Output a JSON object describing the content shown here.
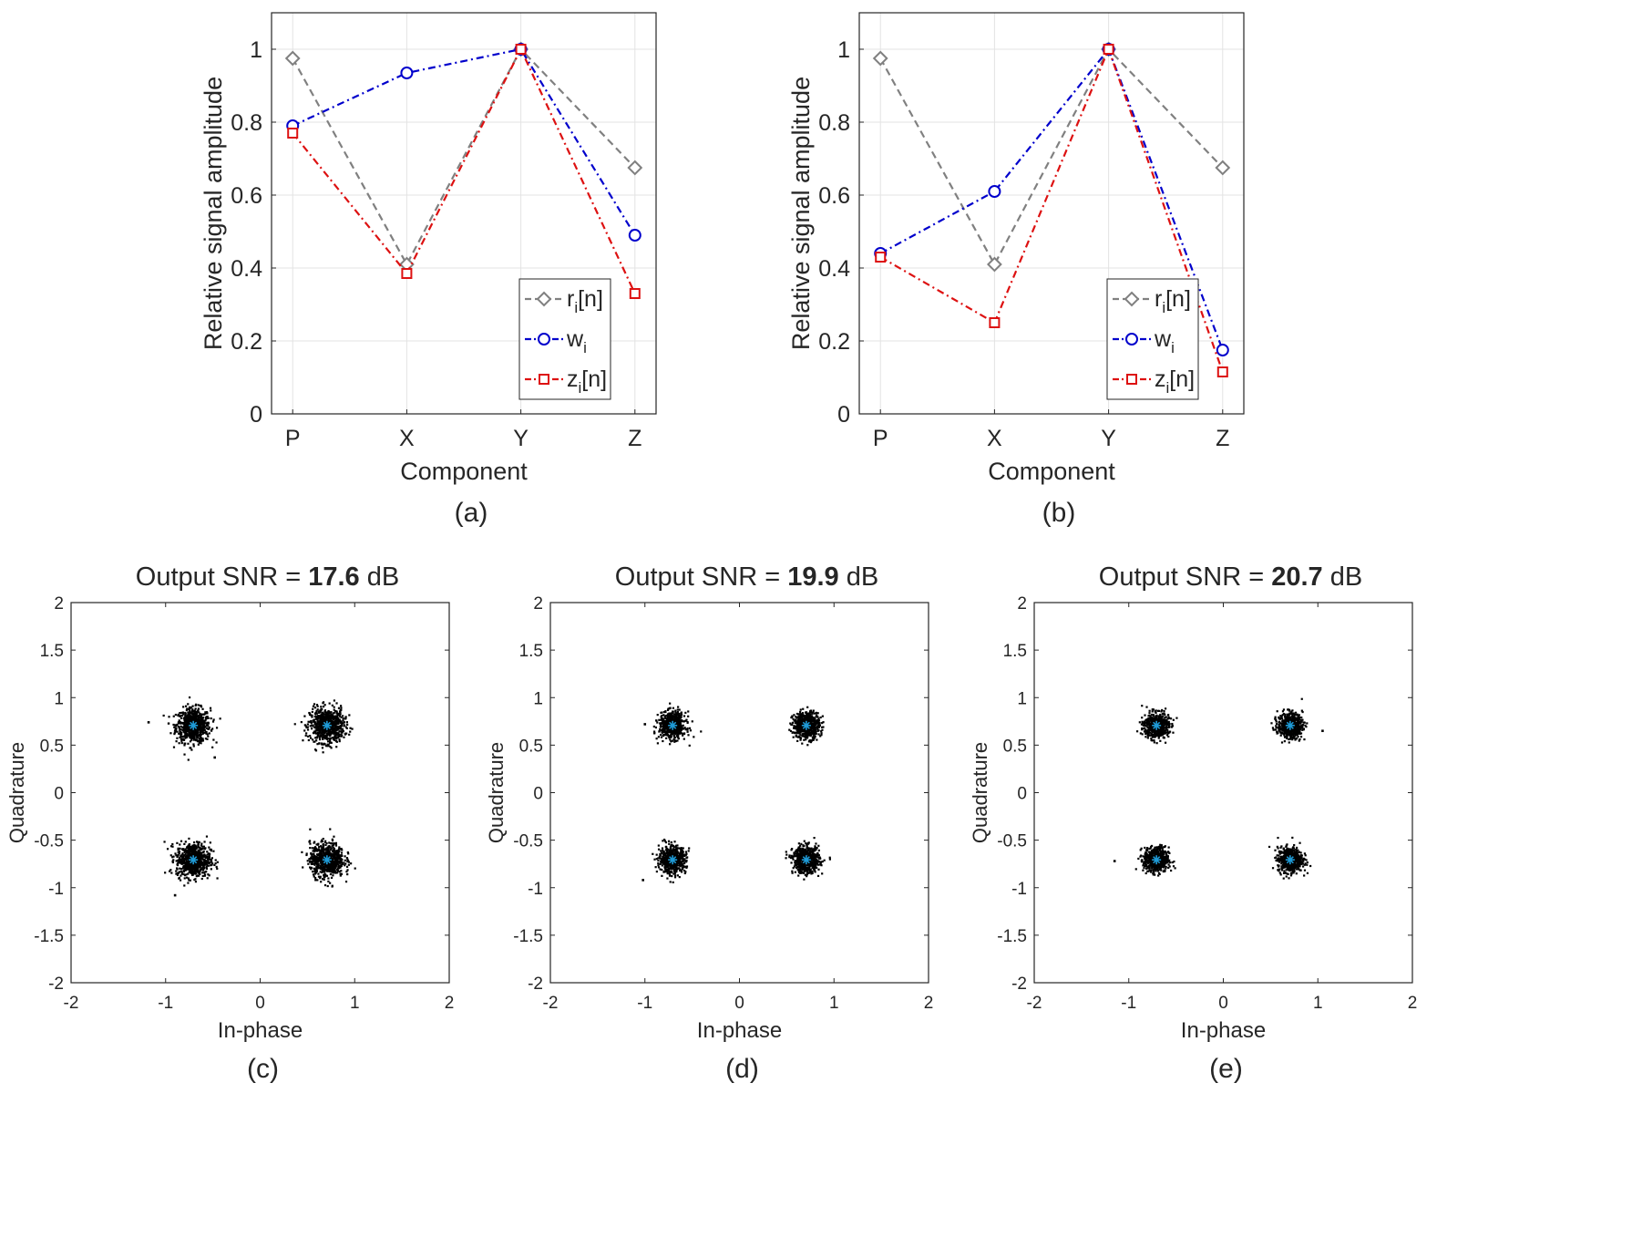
{
  "chart_data": [
    {
      "id": "a",
      "type": "line",
      "caption": "(a)",
      "xlabel": "Component",
      "ylabel": "Relative signal amplitude",
      "categories": [
        "P",
        "X",
        "Y",
        "Z"
      ],
      "ylim": [
        0,
        1.1
      ],
      "yticks": [
        0,
        0.2,
        0.4,
        0.6,
        0.8,
        1
      ],
      "ytick_labels": [
        "0",
        "0.2",
        "0.4",
        "0.6",
        "0.8",
        "1"
      ],
      "grid": true,
      "legend_position": "bottom-right",
      "series": [
        {
          "name": "r",
          "sub": "i",
          "suffix": "[n]",
          "marker": "diamond",
          "color": "#808080",
          "dash": "dashed",
          "values": [
            0.975,
            0.41,
            1.0,
            0.675
          ]
        },
        {
          "name": "w",
          "sub": "i",
          "suffix": "",
          "marker": "circle",
          "color": "#0000cc",
          "dash": "dashdot",
          "values": [
            0.79,
            0.935,
            1.0,
            0.49
          ]
        },
        {
          "name": "z",
          "sub": "i",
          "suffix": "[n]",
          "marker": "square",
          "color": "#dd1111",
          "dash": "dashdot",
          "values": [
            0.77,
            0.385,
            1.0,
            0.33
          ]
        }
      ]
    },
    {
      "id": "b",
      "type": "line",
      "caption": "(b)",
      "xlabel": "Component",
      "ylabel": "Relative signal amplitude",
      "categories": [
        "P",
        "X",
        "Y",
        "Z"
      ],
      "ylim": [
        0,
        1.1
      ],
      "yticks": [
        0,
        0.2,
        0.4,
        0.6,
        0.8,
        1
      ],
      "ytick_labels": [
        "0",
        "0.2",
        "0.4",
        "0.6",
        "0.8",
        "1"
      ],
      "grid": true,
      "legend_position": "bottom-right",
      "series": [
        {
          "name": "r",
          "sub": "i",
          "suffix": "[n]",
          "marker": "diamond",
          "color": "#808080",
          "dash": "dashed",
          "values": [
            0.975,
            0.41,
            1.0,
            0.675
          ]
        },
        {
          "name": "w",
          "sub": "i",
          "suffix": "",
          "marker": "circle",
          "color": "#0000cc",
          "dash": "dashdot",
          "values": [
            0.44,
            0.61,
            1.0,
            0.175
          ]
        },
        {
          "name": "z",
          "sub": "i",
          "suffix": "[n]",
          "marker": "square",
          "color": "#dd1111",
          "dash": "dashdot",
          "values": [
            0.43,
            0.25,
            1.0,
            0.115
          ]
        }
      ]
    },
    {
      "id": "c",
      "type": "scatter",
      "caption": "(c)",
      "title_prefix": "Output SNR = ",
      "title_value": "17.6",
      "title_suffix": " dB",
      "xlabel": "In-phase",
      "ylabel": "Quadrature",
      "xlim": [
        -2,
        2
      ],
      "ylim": [
        -2,
        2
      ],
      "xticks": [
        -2,
        -1,
        0,
        1,
        2
      ],
      "xtick_labels": [
        "-2",
        "-1",
        "0",
        "1",
        "2"
      ],
      "yticks": [
        -2,
        -1.5,
        -1,
        -0.5,
        0,
        0.5,
        1,
        1.5,
        2
      ],
      "ytick_labels": [
        "-2",
        "-1.5",
        "-1",
        "-0.5",
        "0",
        "0.5",
        "1",
        "1.5",
        "2"
      ],
      "grid": false,
      "constellation": [
        [
          -0.707,
          0.707
        ],
        [
          0.707,
          0.707
        ],
        [
          -0.707,
          -0.707
        ],
        [
          0.707,
          -0.707
        ]
      ],
      "cluster_spread": 0.09,
      "points_per_cluster": 700,
      "outliers": [
        [
          -1.18,
          0.74
        ],
        [
          -0.48,
          0.37
        ],
        [
          -0.9,
          -1.08
        ]
      ]
    },
    {
      "id": "d",
      "type": "scatter",
      "caption": "(d)",
      "title_prefix": "Output SNR = ",
      "title_value": "19.9",
      "title_suffix": " dB",
      "xlabel": "In-phase",
      "ylabel": "Quadrature",
      "xlim": [
        -2,
        2
      ],
      "ylim": [
        -2,
        2
      ],
      "xticks": [
        -2,
        -1,
        0,
        1,
        2
      ],
      "xtick_labels": [
        "-2",
        "-1",
        "0",
        "1",
        "2"
      ],
      "yticks": [
        -2,
        -1.5,
        -1,
        -0.5,
        0,
        0.5,
        1,
        1.5,
        2
      ],
      "ytick_labels": [
        "-2",
        "-1.5",
        "-1",
        "-0.5",
        "0",
        "0.5",
        "1",
        "1.5",
        "2"
      ],
      "grid": false,
      "constellation": [
        [
          -0.707,
          0.707
        ],
        [
          0.707,
          0.707
        ],
        [
          -0.707,
          -0.707
        ],
        [
          0.707,
          -0.707
        ]
      ],
      "cluster_spread": 0.07,
      "points_per_cluster": 600,
      "outliers": [
        [
          -1.02,
          -0.92
        ],
        [
          -1.0,
          0.72
        ]
      ]
    },
    {
      "id": "e",
      "type": "scatter",
      "caption": "(e)",
      "title_prefix": "Output SNR = ",
      "title_value": "20.7",
      "title_suffix": " dB",
      "xlabel": "In-phase",
      "ylabel": "Quadrature",
      "xlim": [
        -2,
        2
      ],
      "ylim": [
        -2,
        2
      ],
      "xticks": [
        -2,
        -1,
        0,
        1,
        2
      ],
      "xtick_labels": [
        "-2",
        "-1",
        "0",
        "1",
        "2"
      ],
      "yticks": [
        -2,
        -1.5,
        -1,
        -0.5,
        0,
        0.5,
        1,
        1.5,
        2
      ],
      "ytick_labels": [
        "-2",
        "-1.5",
        "-1",
        "-0.5",
        "0",
        "0.5",
        "1",
        "1.5",
        "2"
      ],
      "grid": false,
      "constellation": [
        [
          -0.707,
          0.707
        ],
        [
          0.707,
          0.707
        ],
        [
          -0.707,
          -0.707
        ],
        [
          0.707,
          -0.707
        ]
      ],
      "cluster_spread": 0.065,
      "points_per_cluster": 600,
      "outliers": [
        [
          -1.15,
          -0.72
        ],
        [
          1.05,
          0.65
        ]
      ]
    }
  ]
}
